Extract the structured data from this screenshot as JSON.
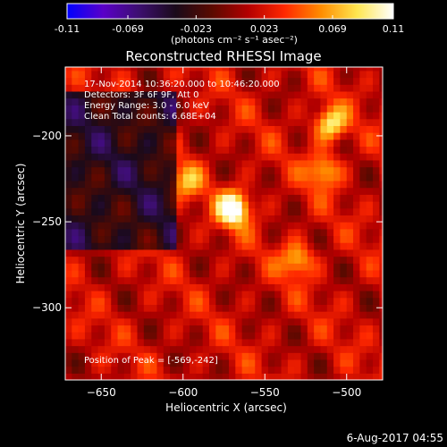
{
  "chart_data": {
    "type": "heatmap",
    "title": "Reconstructed RHESSI Image",
    "colorbar": {
      "ticks": [
        "-0.11",
        "-0.069",
        "-0.023",
        "0.023",
        "0.069",
        "0.11"
      ],
      "unit_label": "(photons cm⁻² s⁻¹ asec⁻²)",
      "range": [
        -0.11,
        0.11
      ],
      "colormap": [
        "#0000ff",
        "#5a00c8",
        "#3c0f6e",
        "#1a0a1a",
        "#5a0a00",
        "#b40000",
        "#ff2800",
        "#ff8c00",
        "#ffe650",
        "#ffffff"
      ]
    },
    "xlabel": "Heliocentric X (arcsec)",
    "ylabel": "Heliocentric Y (arcsec)",
    "xlim": [
      -672,
      -478
    ],
    "ylim": [
      -342,
      -160
    ],
    "x_ticks": [
      -650,
      -600,
      -550,
      -500
    ],
    "y_ticks": [
      -200,
      -250,
      -300
    ],
    "annotations": [
      "17-Nov-2014 10:36:20.000 to 10:46:20.000",
      "Detectors: 3F 6F 9F, Att 0",
      "Energy Range: 3.0 - 6.0 keV",
      "Clean     Total counts: 6.68E+04"
    ],
    "peak_label": "Position of Peak = [-569,-242]",
    "peak": {
      "x": -569,
      "y": -242,
      "value": 0.11
    },
    "bright_sources": [
      {
        "x": -569,
        "y": -242,
        "value": 0.11
      },
      {
        "x": -510,
        "y": -193,
        "value": 0.08
      },
      {
        "x": -514,
        "y": -220,
        "value": 0.06
      },
      {
        "x": -530,
        "y": -272,
        "value": 0.06
      },
      {
        "x": -598,
        "y": -226,
        "value": 0.05
      }
    ]
  },
  "footer": {
    "date": "6-Aug-2017 04:55"
  }
}
